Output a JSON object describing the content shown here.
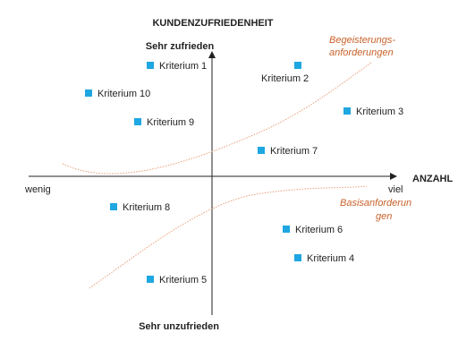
{
  "axes": {
    "y_title": "KUNDENZUFRIEDENHEIT",
    "y_top": "Sehr zufrieden",
    "y_bottom": "Sehr unzufrieden",
    "x_title": "ANZAHL",
    "x_left": "wenig",
    "x_right": "viel"
  },
  "curves": {
    "upper_label_line1": "Begeisterungs-",
    "upper_label_line2": "anforderungen",
    "lower_label_line1": "Basisanforderun",
    "lower_label_line2": "gen"
  },
  "criteria": [
    {
      "label": "Kriterium 1"
    },
    {
      "label": "Kriterium 2"
    },
    {
      "label": "Kriterium 3"
    },
    {
      "label": "Kriterium 4"
    },
    {
      "label": "Kriterium 5"
    },
    {
      "label": "Kriterium 6"
    },
    {
      "label": "Kriterium 7"
    },
    {
      "label": "Kriterium 8"
    },
    {
      "label": "Kriterium 9"
    },
    {
      "label": "Kriterium 10"
    }
  ],
  "colors": {
    "marker": "#1ea7e1",
    "curve": "#e8a07a",
    "curve_label": "#c8622a",
    "axis": "#222222"
  }
}
